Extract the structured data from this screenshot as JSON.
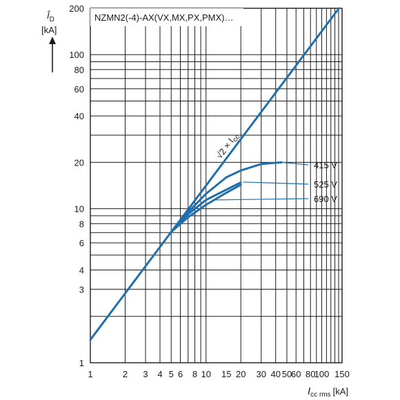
{
  "chart_data": {
    "type": "line",
    "title": "NZMN2(-4)-AX(VX,MX,PX,PMX)…",
    "x_axis": {
      "scale": "log",
      "range": [
        1,
        150
      ],
      "ticks": [
        1,
        2,
        3,
        4,
        5,
        6,
        8,
        10,
        15,
        20,
        30,
        40,
        50,
        60,
        80,
        100,
        150
      ],
      "tick_labels": [
        "1",
        "2",
        "3",
        "4",
        "5",
        "6",
        "8",
        "10",
        "15",
        "20",
        "30",
        "40",
        "50",
        "60",
        "80",
        "100",
        "150"
      ],
      "label_main": "I",
      "label_sub": "cc rms",
      "label_unit": "[kA]"
    },
    "y_axis": {
      "scale": "log",
      "range": [
        1,
        200
      ],
      "ticks": [
        1,
        3,
        4,
        6,
        8,
        10,
        20,
        40,
        60,
        80,
        100,
        200
      ],
      "tick_labels": [
        "1",
        "3",
        "4",
        "6",
        "8",
        "10",
        "20",
        "40",
        "60",
        "80",
        "100",
        "200"
      ],
      "label_main": "Î",
      "label_sub": "D",
      "label_unit": "[kA]"
    },
    "grid": true,
    "diagonal": {
      "label_prefix": "√2 × I",
      "label_sub": "cc",
      "points": [
        [
          1,
          1.41
        ],
        [
          141,
          200
        ]
      ]
    },
    "series": [
      {
        "name": "415 V",
        "points": [
          [
            5,
            7.07
          ],
          [
            7,
            9.5
          ],
          [
            10,
            12.5
          ],
          [
            15,
            16
          ],
          [
            20,
            17.7
          ],
          [
            30,
            19.5
          ],
          [
            45,
            20
          ]
        ]
      },
      {
        "name": "525 V",
        "points": [
          [
            5,
            7.07
          ],
          [
            7,
            9.2
          ],
          [
            10,
            11.4
          ],
          [
            15,
            13.3
          ],
          [
            20,
            14.8
          ]
        ]
      },
      {
        "name": "690 V",
        "points": [
          [
            5,
            7.07
          ],
          [
            7,
            8.8
          ],
          [
            10,
            10.6
          ],
          [
            15,
            12.7
          ],
          [
            20,
            14.3
          ]
        ]
      }
    ],
    "annotations": [
      {
        "series": "415 V",
        "at": [
          45,
          20
        ]
      },
      {
        "series": "525 V",
        "at": [
          21,
          14.9
        ]
      },
      {
        "series": "690 V",
        "at": [
          12,
          11.4
        ]
      }
    ]
  }
}
